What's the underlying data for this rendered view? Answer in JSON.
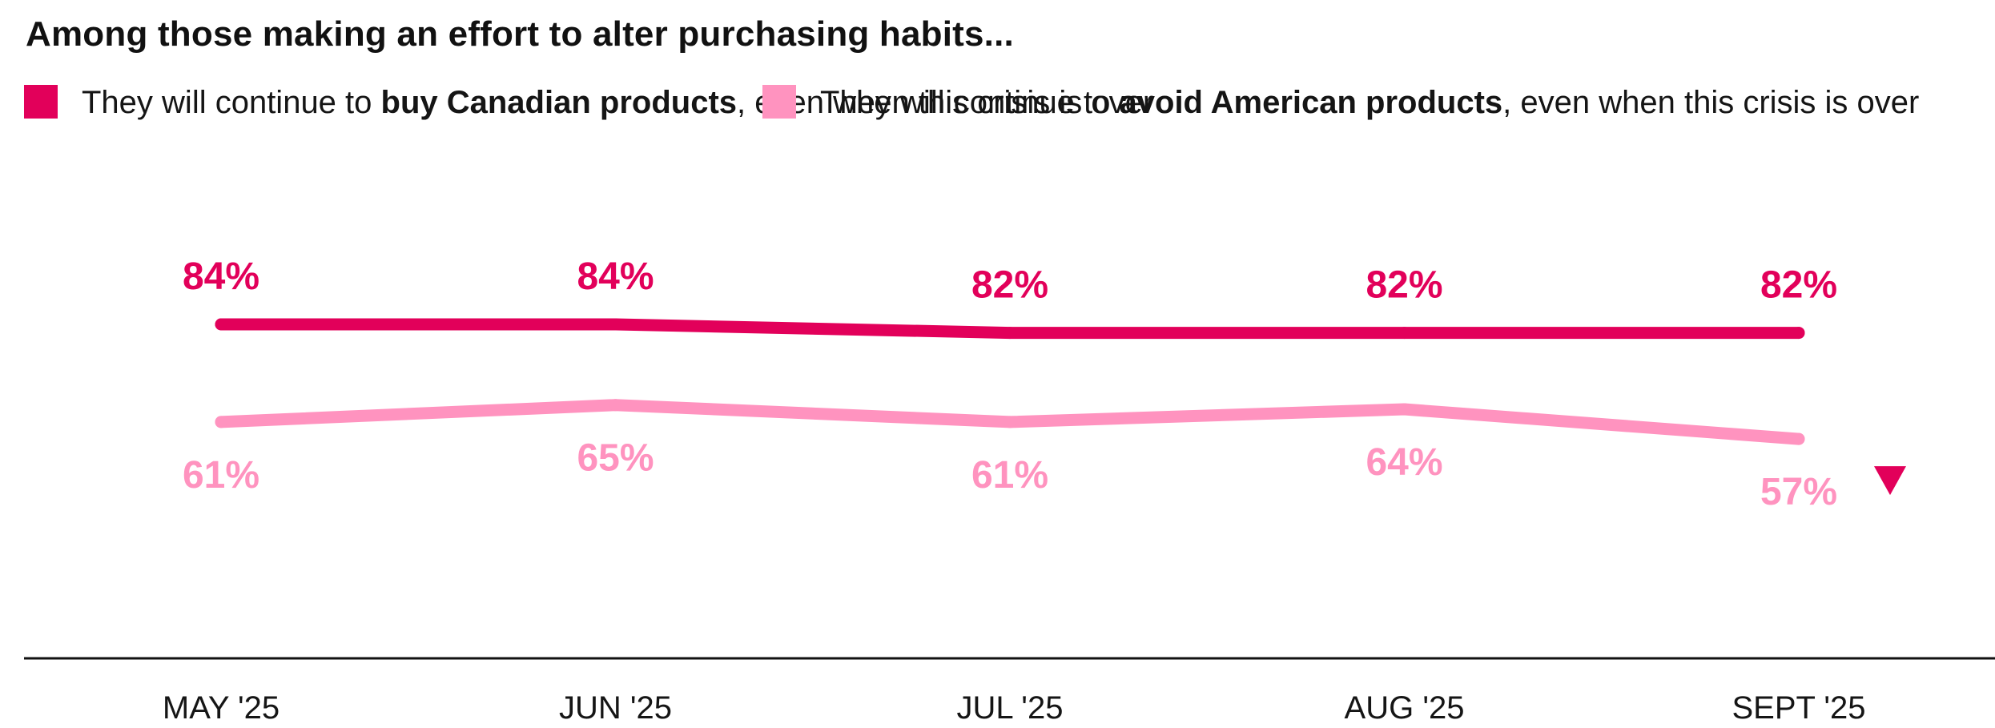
{
  "chart_data": {
    "type": "line",
    "title": "Among those making an effort to alter purchasing habits...",
    "categories": [
      "MAY '25",
      "JUN '25",
      "JUL '25",
      "AUG '25",
      "SEPT '25"
    ],
    "series": [
      {
        "name": "They will continue to buy Canadian products, even when this crisis is over",
        "legend_prefix": "They will continue to ",
        "legend_bold": "buy Canadian products",
        "legend_suffix": ", even when this crisis is over",
        "values": [
          84,
          84,
          82,
          82,
          82
        ],
        "labels": [
          "84%",
          "84%",
          "82%",
          "82%",
          "82%"
        ],
        "color": "#e2005a"
      },
      {
        "name": "They will continue to avoid American products, even when this crisis is over",
        "legend_prefix": "They will continue to ",
        "legend_bold": "avoid American products",
        "legend_suffix": ", even when this crisis is over",
        "values": [
          61,
          65,
          61,
          64,
          57
        ],
        "labels": [
          "61%",
          "65%",
          "61%",
          "64%",
          "57%"
        ],
        "color": "#ff93bf"
      }
    ],
    "annotations": [
      {
        "type": "down-triangle",
        "category": "SEPT '25",
        "series": 1,
        "color": "#e2005a"
      }
    ],
    "ylim": [
      40,
      100
    ],
    "grid": false,
    "legend_position": "top-left",
    "xlabel": "",
    "ylabel": ""
  }
}
